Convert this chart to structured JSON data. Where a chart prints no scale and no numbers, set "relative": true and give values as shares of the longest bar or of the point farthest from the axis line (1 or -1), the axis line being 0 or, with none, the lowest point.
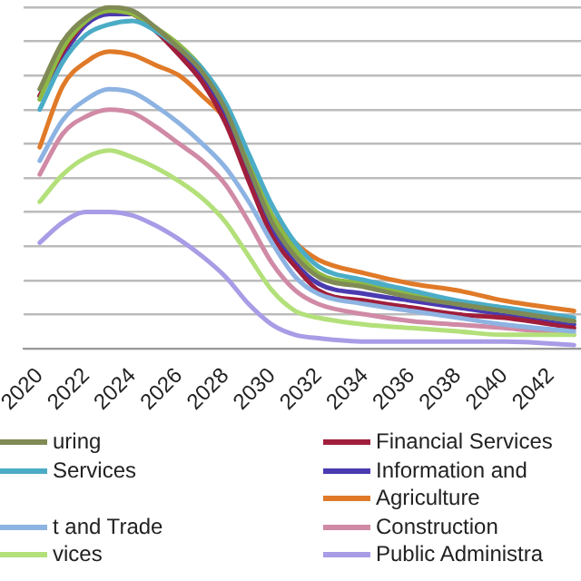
{
  "chart_data": {
    "type": "line",
    "relative": true,
    "grid": "y",
    "legend": "bottom",
    "marker": "none",
    "line_style": "solid",
    "x": [
      2020,
      2021,
      2022,
      2023,
      2024,
      2025,
      2026,
      2027,
      2028,
      2029,
      2030,
      2031,
      2032,
      2034,
      2036,
      2038,
      2040,
      2043
    ],
    "xlim": [
      2019.3,
      2043.3
    ],
    "xticks": [
      2020,
      2022,
      2024,
      2026,
      2028,
      2030,
      2032,
      2034,
      2036,
      2038,
      2040,
      2042
    ],
    "series": [
      {
        "name": "uring",
        "color": "#7f8a55",
        "values": [
          0.76,
          0.9,
          0.97,
          1.0,
          0.99,
          0.94,
          0.88,
          0.81,
          0.7,
          0.53,
          0.37,
          0.27,
          0.21,
          0.18,
          0.15,
          0.13,
          0.11,
          0.08
        ]
      },
      {
        "name": "Services",
        "color": "#4bacc6",
        "values": [
          0.7,
          0.84,
          0.92,
          0.95,
          0.96,
          0.93,
          0.88,
          0.82,
          0.72,
          0.57,
          0.42,
          0.31,
          0.24,
          0.2,
          0.17,
          0.14,
          0.12,
          0.09
        ]
      },
      {
        "color": "#8db844",
        "values": [
          0.73,
          0.88,
          0.96,
          0.99,
          0.98,
          0.94,
          0.89,
          0.82,
          0.71,
          0.55,
          0.39,
          0.29,
          0.22,
          0.19,
          0.16,
          0.13,
          0.11,
          0.08
        ]
      },
      {
        "name": "t and Trade",
        "color": "#8db3e2",
        "values": [
          0.55,
          0.67,
          0.73,
          0.76,
          0.75,
          0.71,
          0.66,
          0.6,
          0.53,
          0.43,
          0.31,
          0.21,
          0.16,
          0.13,
          0.11,
          0.09,
          0.07,
          0.05
        ]
      },
      {
        "name": "vices",
        "color": "#b3e07a",
        "values": [
          0.43,
          0.51,
          0.56,
          0.58,
          0.56,
          0.53,
          0.49,
          0.44,
          0.37,
          0.27,
          0.17,
          0.11,
          0.09,
          0.07,
          0.06,
          0.05,
          0.04,
          0.04
        ]
      },
      {
        "name": "Financial Services",
        "color": "#a01e3c",
        "values": [
          0.74,
          0.87,
          0.96,
          0.99,
          0.98,
          0.93,
          0.86,
          0.78,
          0.66,
          0.49,
          0.33,
          0.24,
          0.17,
          0.14,
          0.12,
          0.1,
          0.09,
          0.06
        ]
      },
      {
        "name": "Information and",
        "color": "#4a3bb0",
        "values": [
          0.74,
          0.86,
          0.95,
          0.98,
          0.98,
          0.93,
          0.87,
          0.8,
          0.68,
          0.51,
          0.35,
          0.25,
          0.19,
          0.16,
          0.14,
          0.12,
          0.1,
          0.07
        ]
      },
      {
        "name": "Agriculture",
        "color": "#e07a28",
        "values": [
          0.59,
          0.77,
          0.84,
          0.87,
          0.86,
          0.83,
          0.8,
          0.74,
          0.67,
          0.53,
          0.39,
          0.31,
          0.26,
          0.22,
          0.19,
          0.17,
          0.14,
          0.11
        ]
      },
      {
        "name": "Construction",
        "color": "#d08aa6",
        "values": [
          0.51,
          0.63,
          0.68,
          0.7,
          0.69,
          0.65,
          0.6,
          0.55,
          0.48,
          0.37,
          0.25,
          0.17,
          0.13,
          0.1,
          0.08,
          0.07,
          0.06,
          0.04
        ]
      },
      {
        "name": "Public Administra",
        "color": "#a89ce6",
        "values": [
          0.31,
          0.37,
          0.4,
          0.4,
          0.39,
          0.36,
          0.32,
          0.27,
          0.21,
          0.13,
          0.07,
          0.04,
          0.03,
          0.02,
          0.02,
          0.02,
          0.02,
          0.01
        ]
      }
    ]
  }
}
